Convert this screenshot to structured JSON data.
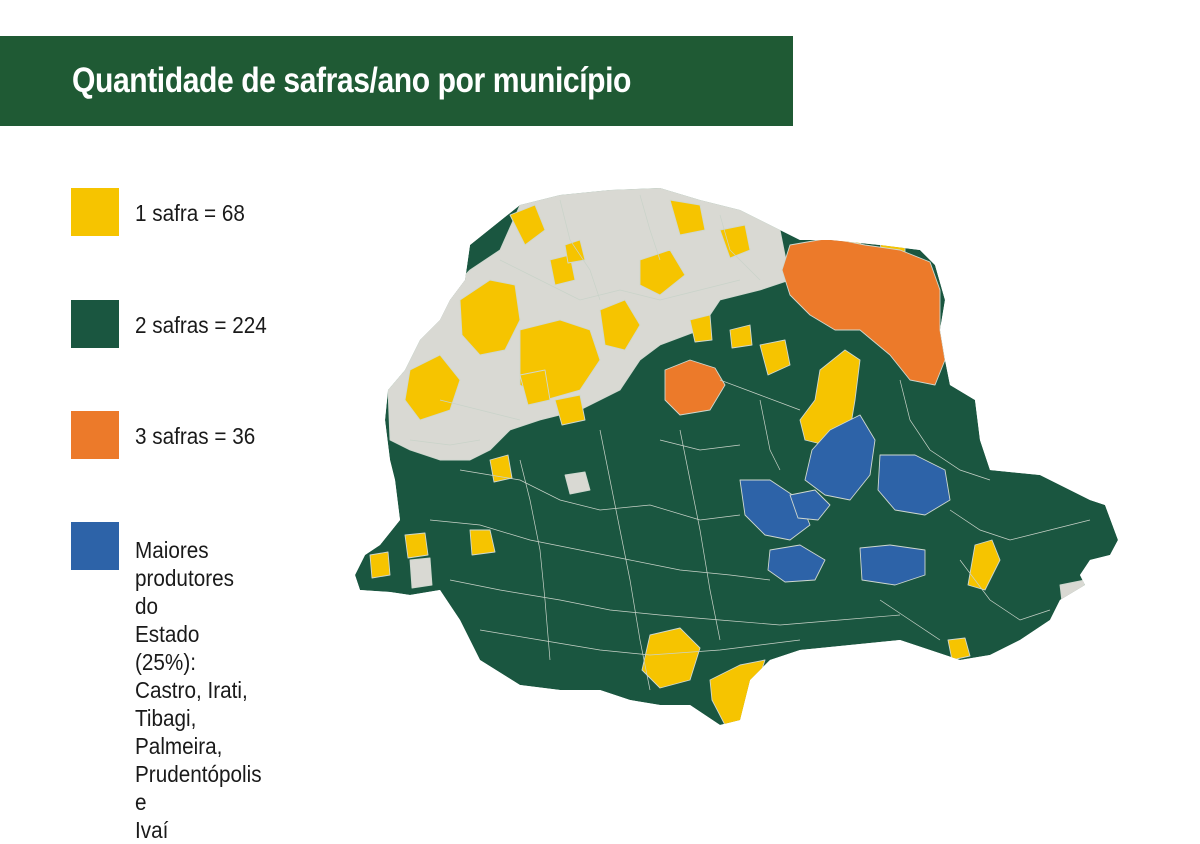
{
  "title": "Quantidade de safras/ano por município",
  "colors": {
    "title_bg": "#1f5a34",
    "one_crop": "#f6c400",
    "two_crops": "#1a5640",
    "three_crops": "#ec7a2a",
    "top_producers": "#2d63a8",
    "no_data": "#d9d9d3"
  },
  "legend": [
    {
      "label": "1 safra = 68",
      "count": 68
    },
    {
      "label": "2 safras = 224",
      "count": 224
    },
    {
      "label": "3 safras = 36",
      "count": 36
    },
    {
      "label": "Maiores\nprodutores do\nEstado (25%):\nCastro, Irati,\nTibagi, Palmeira,\nPrudentópolis e\nIvaí"
    }
  ]
}
